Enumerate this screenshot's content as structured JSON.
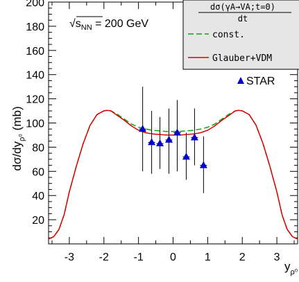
{
  "chart_data": {
    "type": "line",
    "xlabel_main": "y",
    "xlabel_sub": "ρ⁰",
    "ylabel_main": "dσ/dy",
    "ylabel_sub": "ρ⁰",
    "ylabel_unit": "(mb)",
    "xlim": [
      -3.6,
      3.6
    ],
    "ylim": [
      0,
      200
    ],
    "x_ticks": [
      -3,
      -2,
      -1,
      0,
      1,
      2,
      3
    ],
    "y_ticks": [
      20,
      40,
      60,
      80,
      100,
      120,
      140,
      160,
      180,
      200
    ],
    "annotation": {
      "sqrt_symbol": "√",
      "s_label": "s",
      "s_sub": "NN",
      "energy_text": " = 200 GeV"
    },
    "legend": {
      "header_numerator": "dσ(γA→VA;t=0)",
      "header_denominator": "dt",
      "entries": [
        {
          "label": "const.",
          "color": "#00aa00",
          "dash": true
        },
        {
          "label": "Glauber+VDM",
          "color": "#dd0000",
          "dash": false
        }
      ]
    },
    "star_label": "STAR",
    "series": [
      {
        "name": "const.",
        "color": "#00aa00",
        "dash": true,
        "x": [
          -3.6,
          -3.45,
          -3.3,
          -3.15,
          -3.0,
          -2.8,
          -2.6,
          -2.4,
          -2.2,
          -2.0,
          -1.9,
          -1.8,
          -1.6,
          -1.4,
          -1.2,
          -1.0,
          -0.8,
          -0.6,
          -0.4,
          -0.2,
          0.0,
          0.2,
          0.4,
          0.6,
          0.8,
          1.0,
          1.2,
          1.4,
          1.6,
          1.8,
          1.9,
          2.0,
          2.2,
          2.4,
          2.6,
          2.8,
          3.0,
          3.15,
          3.3,
          3.45,
          3.6
        ],
        "y": [
          4,
          6,
          12,
          24,
          43,
          64,
          83,
          98,
          107,
          110,
          110.5,
          110,
          107,
          103,
          99,
          96.5,
          95,
          94,
          93.5,
          93,
          93,
          93,
          93.5,
          94,
          95,
          96.5,
          99,
          103,
          107,
          110,
          110.5,
          110,
          107,
          98,
          83,
          64,
          43,
          24,
          12,
          6,
          4
        ]
      },
      {
        "name": "Glauber+VDM",
        "color": "#dd0000",
        "dash": false,
        "x": [
          -3.6,
          -3.45,
          -3.3,
          -3.15,
          -3.0,
          -2.8,
          -2.6,
          -2.4,
          -2.2,
          -2.0,
          -1.9,
          -1.8,
          -1.6,
          -1.4,
          -1.2,
          -1.0,
          -0.8,
          -0.6,
          -0.4,
          -0.2,
          0.0,
          0.2,
          0.4,
          0.6,
          0.8,
          1.0,
          1.2,
          1.4,
          1.6,
          1.8,
          1.9,
          2.0,
          2.2,
          2.4,
          2.6,
          2.8,
          3.0,
          3.15,
          3.3,
          3.45,
          3.6
        ],
        "y": [
          4,
          6,
          12,
          24,
          43,
          64,
          83,
          98,
          107,
          110,
          110.5,
          110,
          106,
          102,
          97.5,
          94,
          92,
          91,
          90.5,
          90,
          90,
          90,
          90.5,
          91,
          92,
          94,
          97.5,
          102,
          106,
          110,
          110.5,
          110,
          107,
          98,
          83,
          64,
          43,
          24,
          12,
          6,
          4
        ]
      }
    ],
    "star_points": [
      {
        "x": -0.88,
        "y": 95,
        "ylo": 60,
        "yhi": 130
      },
      {
        "x": -0.62,
        "y": 84,
        "ylo": 58,
        "yhi": 110
      },
      {
        "x": -0.38,
        "y": 83,
        "ylo": 62,
        "yhi": 105
      },
      {
        "x": -0.12,
        "y": 86,
        "ylo": 58,
        "yhi": 112
      },
      {
        "x": 0.12,
        "y": 92,
        "ylo": 60,
        "yhi": 119
      },
      {
        "x": 0.38,
        "y": 72,
        "ylo": 53,
        "yhi": 92
      },
      {
        "x": 0.62,
        "y": 88,
        "ylo": 65,
        "yhi": 112
      },
      {
        "x": 0.88,
        "y": 65,
        "ylo": 42,
        "yhi": 89
      }
    ]
  }
}
